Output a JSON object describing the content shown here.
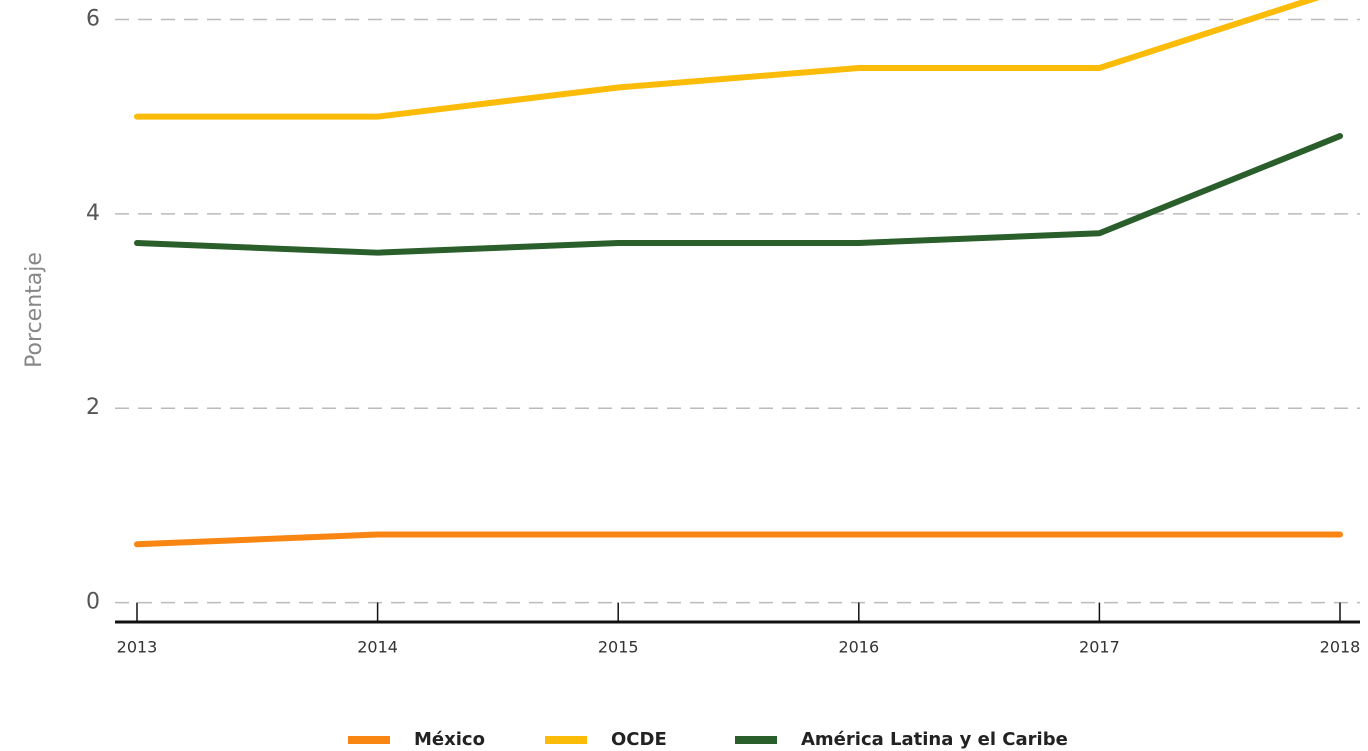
{
  "chart_data": {
    "type": "line",
    "y_label": "Porcentaje",
    "categories": [
      "2013",
      "2014",
      "2015",
      "2016",
      "2017",
      "2018"
    ],
    "series": [
      {
        "name": "México",
        "color": "#f98513",
        "values": [
          0.6,
          0.7,
          0.7,
          0.7,
          0.7,
          0.7
        ]
      },
      {
        "name": "OCDE",
        "color": "#fbbc09",
        "values": [
          5.0,
          5.0,
          5.3,
          5.5,
          5.5,
          6.3
        ]
      },
      {
        "name": "América Latina y el Caribe",
        "color": "#2a5e2b",
        "values": [
          3.7,
          3.6,
          3.7,
          3.7,
          3.8,
          4.8
        ]
      }
    ],
    "ylim": [
      -0.2,
      6.2
    ],
    "yticks": [
      0,
      2,
      4,
      6
    ],
    "grid": true
  }
}
